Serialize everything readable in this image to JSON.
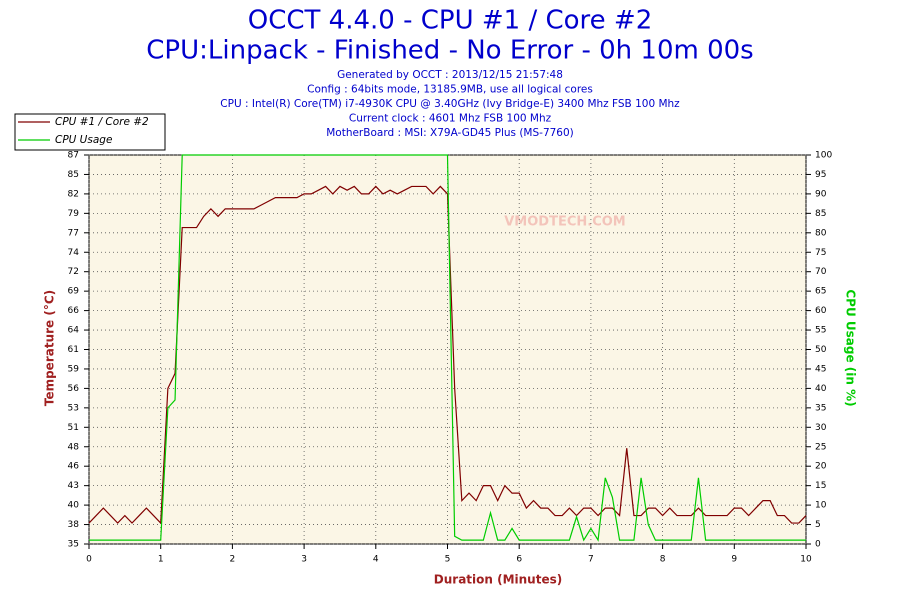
{
  "chart_data": {
    "type": "line",
    "title": "OCCT 4.4.0 - CPU #1 / Core #2",
    "subtitle": "CPU:Linpack - Finished - No Error - 0h 10m 00s",
    "info": [
      "Generated by OCCT : 2013/12/15 21:57:48",
      "Config : 64bits mode, 13185.9MB, use all logical cores",
      "CPU : Intel(R) Core(TM) i7-4930K CPU @ 3.40GHz (Ivy Bridge-E) 3400 Mhz FSB 100 Mhz",
      "Current clock : 4601 Mhz FSB 100 Mhz",
      "MotherBoard : MSI: X79A-GD45 Plus (MS-7760)"
    ],
    "watermark": "VMODTECH.COM",
    "x_label": "Duration (Minutes)",
    "y_label": "Temperature (°C)",
    "y2_label": "CPU Usage (in %)",
    "grid": true,
    "legend": "top-left",
    "xlim": [
      0,
      10
    ],
    "xticks": [
      0,
      1,
      2,
      3,
      4,
      5,
      6,
      7,
      8,
      9,
      10
    ],
    "ylim": [
      35.2,
      87.2
    ],
    "yticks": [
      {
        "value": 35.2,
        "label": "35"
      },
      {
        "value": 37.8,
        "label": "38"
      },
      {
        "value": 40.4,
        "label": "40"
      },
      {
        "value": 43.0,
        "label": "43"
      },
      {
        "value": 45.6,
        "label": "46"
      },
      {
        "value": 48.2,
        "label": "48"
      },
      {
        "value": 50.8,
        "label": "51"
      },
      {
        "value": 53.4,
        "label": "53"
      },
      {
        "value": 56.0,
        "label": "56"
      },
      {
        "value": 58.6,
        "label": "59"
      },
      {
        "value": 61.2,
        "label": "61"
      },
      {
        "value": 63.8,
        "label": "64"
      },
      {
        "value": 66.4,
        "label": "66"
      },
      {
        "value": 69.0,
        "label": "69"
      },
      {
        "value": 71.6,
        "label": "72"
      },
      {
        "value": 74.2,
        "label": "74"
      },
      {
        "value": 76.8,
        "label": "77"
      },
      {
        "value": 79.4,
        "label": "79"
      },
      {
        "value": 82.0,
        "label": "82"
      },
      {
        "value": 84.6,
        "label": "85"
      },
      {
        "value": 87.2,
        "label": "87"
      }
    ],
    "y2lim": [
      0,
      100
    ],
    "y2ticks": [
      0,
      5,
      10,
      15,
      20,
      25,
      30,
      35,
      40,
      45,
      50,
      55,
      60,
      65,
      70,
      75,
      80,
      85,
      90,
      95,
      100
    ],
    "x": [
      0,
      0.1,
      0.2,
      0.3,
      0.4,
      0.5,
      0.6,
      0.7,
      0.8,
      0.9,
      1,
      1.1,
      1.2,
      1.3,
      1.4,
      1.5,
      1.6,
      1.7,
      1.8,
      1.9,
      2,
      2.1,
      2.2,
      2.3,
      2.4,
      2.5,
      2.6,
      2.7,
      2.8,
      2.9,
      3,
      3.1,
      3.2,
      3.3,
      3.4,
      3.5,
      3.6,
      3.7,
      3.8,
      3.9,
      4,
      4.1,
      4.2,
      4.3,
      4.4,
      4.5,
      4.6,
      4.7,
      4.8,
      4.9,
      5,
      5.1,
      5.2,
      5.3,
      5.4,
      5.5,
      5.6,
      5.7,
      5.8,
      5.9,
      6,
      6.1,
      6.2,
      6.3,
      6.4,
      6.5,
      6.6,
      6.7,
      6.8,
      6.9,
      7,
      7.1,
      7.2,
      7.3,
      7.4,
      7.5,
      7.6,
      7.7,
      7.8,
      7.9,
      8,
      8.1,
      8.2,
      8.3,
      8.4,
      8.5,
      8.6,
      8.7,
      8.8,
      8.9,
      9,
      9.1,
      9.2,
      9.3,
      9.4,
      9.5,
      9.6,
      9.7,
      9.8,
      9.9,
      10
    ],
    "series": [
      {
        "name": "CPU #1 / Core #2",
        "color": "#800000",
        "axis": "y",
        "values": [
          38,
          39,
          40,
          39,
          38,
          39,
          38,
          39,
          40,
          39,
          38,
          56,
          58,
          77.5,
          77.5,
          77.5,
          79,
          80,
          79,
          80,
          80,
          80,
          80,
          80,
          80.5,
          81,
          81.5,
          81.5,
          81.5,
          81.5,
          82,
          82,
          82.5,
          83,
          82,
          83,
          82.5,
          83,
          82,
          82,
          83,
          82,
          82.5,
          82,
          82.5,
          83,
          83,
          83,
          82,
          83,
          82,
          56,
          41,
          42,
          41,
          43,
          43,
          41,
          43,
          42,
          42,
          40,
          41,
          40,
          40,
          39,
          39,
          40,
          39,
          40,
          40,
          39,
          40,
          40,
          39,
          48,
          39,
          39,
          40,
          40,
          39,
          40,
          39,
          39,
          39,
          40,
          39,
          39,
          39,
          39,
          40,
          40,
          39,
          40,
          41,
          41,
          39,
          39,
          38,
          38,
          39
        ]
      },
      {
        "name": "CPU Usage",
        "color": "#00cc00",
        "axis": "y2",
        "values": [
          1,
          1,
          1,
          1,
          1,
          1,
          1,
          1,
          1,
          1,
          1,
          35,
          37,
          100,
          100,
          100,
          100,
          100,
          100,
          100,
          100,
          100,
          100,
          100,
          100,
          100,
          100,
          100,
          100,
          100,
          100,
          100,
          100,
          100,
          100,
          100,
          100,
          100,
          100,
          100,
          100,
          100,
          100,
          100,
          100,
          100,
          100,
          100,
          100,
          100,
          100,
          2,
          1,
          1,
          1,
          1,
          8,
          1,
          1,
          4,
          1,
          1,
          1,
          1,
          1,
          1,
          1,
          1,
          7,
          1,
          4,
          1,
          17,
          12,
          1,
          1,
          1,
          17,
          5,
          1,
          1,
          1,
          1,
          1,
          1,
          17,
          1,
          1,
          1,
          1,
          1,
          1,
          1,
          1,
          1,
          1,
          1,
          1,
          1,
          1,
          1
        ]
      }
    ]
  }
}
